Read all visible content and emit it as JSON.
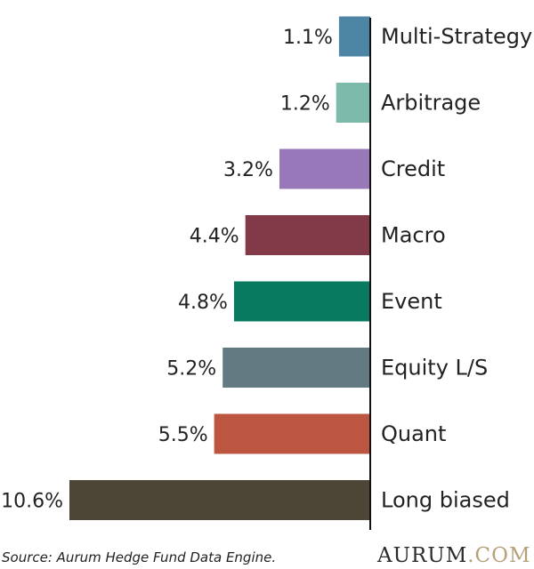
{
  "chart_data": {
    "type": "bar",
    "orientation": "horizontal",
    "categories": [
      "Multi-Strategy",
      "Arbitrage",
      "Credit",
      "Macro",
      "Event",
      "Equity L/S",
      "Quant",
      "Long biased"
    ],
    "values": [
      1.1,
      1.2,
      3.2,
      4.4,
      4.8,
      5.2,
      5.5,
      10.6
    ],
    "value_labels": [
      "1.1%",
      "1.2%",
      "3.2%",
      "4.4%",
      "4.8%",
      "5.2%",
      "5.5%",
      "10.6%"
    ],
    "colors": [
      "#4d86a5",
      "#7dbaa9",
      "#9878b8",
      "#823a48",
      "#087a5f",
      "#647a82",
      "#bd5641",
      "#4d4535"
    ],
    "xlabel": "",
    "ylabel": "",
    "grid": false
  },
  "footer": {
    "source": "Source: Aurum Hedge Fund Data Engine.",
    "logo_main": "AURUM",
    "logo_suffix": ".COM"
  }
}
